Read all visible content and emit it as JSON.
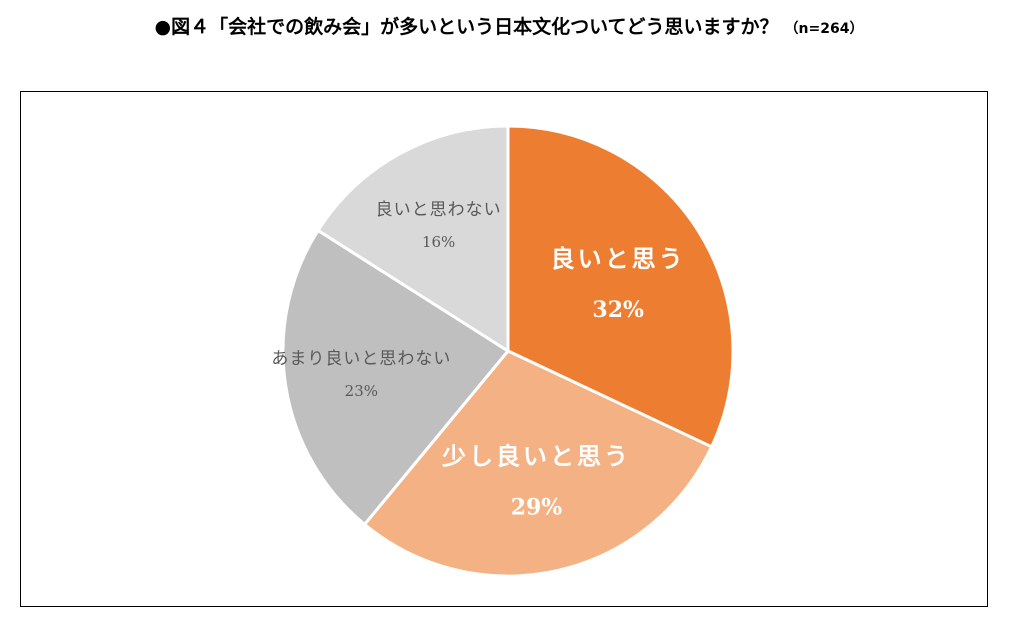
{
  "title": {
    "main": "●図４「会社での飲み会」が多いという日本文化ついてどう思いますか？",
    "n": "（n=264）"
  },
  "chart_data": {
    "type": "pie",
    "title": "●図４「会社での飲み会」が多いという日本文化ついてどう思いますか？ （n=264）",
    "start": "12 o'clock",
    "direction": "clockwise",
    "slices": [
      {
        "label": "良いと思う",
        "value": 32,
        "value_label": "32%",
        "color": "#ED7D31",
        "text_color": "#FFFFFF"
      },
      {
        "label": "少し良いと思う",
        "value": 29,
        "value_label": "29%",
        "color": "#F4B183",
        "text_color": "#FFFFFF"
      },
      {
        "label": "あまり良いと思わない",
        "value": 23,
        "value_label": "23%",
        "color": "#BFBFBF",
        "text_color": "#595959"
      },
      {
        "label": "良いと思わない",
        "value": 16,
        "value_label": "16%",
        "color": "#D9D9D9",
        "text_color": "#595959"
      }
    ]
  }
}
